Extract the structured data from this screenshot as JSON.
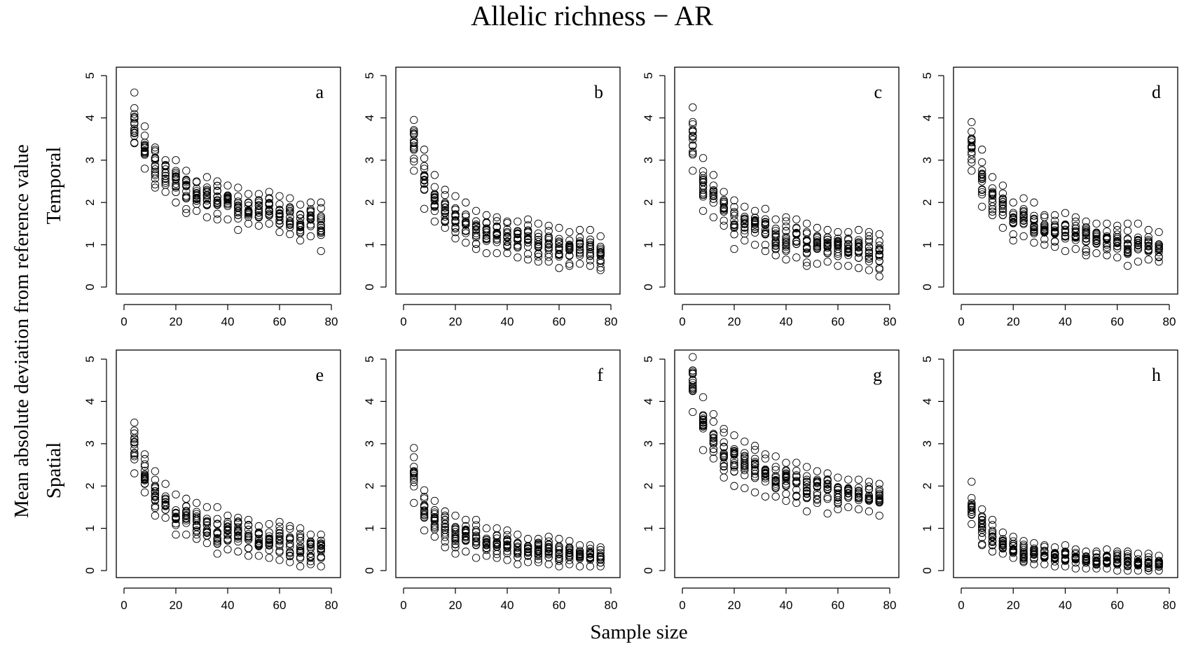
{
  "figure": {
    "title": "Allelic richness − AR",
    "xlabel": "Sample size",
    "ylabel": "Mean absolute deviation from reference value",
    "row_labels": [
      "Temporal",
      "Spatial"
    ]
  },
  "chart_data": {
    "type": "scatter",
    "title": "Allelic richness − AR",
    "xlabel": "Sample size",
    "ylabel": "Mean absolute deviation from reference value",
    "xlim": [
      0,
      80
    ],
    "ylim": [
      0,
      5
    ],
    "xticks": [
      0,
      20,
      40,
      60,
      80
    ],
    "yticks": [
      0,
      1,
      2,
      3,
      4,
      5
    ],
    "x": [
      4,
      8,
      12,
      16,
      20,
      24,
      28,
      32,
      36,
      40,
      44,
      48,
      52,
      56,
      60,
      64,
      68,
      72,
      76
    ],
    "panels": [
      {
        "label": "a",
        "row": "Temporal",
        "range_min": [
          3.4,
          2.8,
          2.35,
          2.25,
          2.0,
          1.75,
          1.8,
          1.65,
          1.6,
          1.6,
          1.35,
          1.5,
          1.45,
          1.5,
          1.3,
          1.25,
          1.1,
          1.2,
          0.85
        ],
        "range_max": [
          4.6,
          3.8,
          3.3,
          3.0,
          3.0,
          2.75,
          2.5,
          2.6,
          2.5,
          2.4,
          2.35,
          2.2,
          2.2,
          2.25,
          2.15,
          2.1,
          1.95,
          2.0,
          2.0
        ]
      },
      {
        "label": "b",
        "row": "Temporal",
        "range_min": [
          2.75,
          1.85,
          1.55,
          1.4,
          1.15,
          1.05,
          0.9,
          0.8,
          0.8,
          0.8,
          0.7,
          0.65,
          0.6,
          0.6,
          0.45,
          0.5,
          0.55,
          0.5,
          0.4
        ],
        "range_max": [
          3.95,
          3.25,
          2.65,
          2.3,
          2.15,
          2.0,
          1.8,
          1.7,
          1.65,
          1.55,
          1.55,
          1.6,
          1.5,
          1.45,
          1.4,
          1.3,
          1.35,
          1.35,
          1.2
        ]
      },
      {
        "label": "c",
        "row": "Temporal",
        "range_min": [
          2.75,
          1.8,
          1.65,
          1.45,
          0.9,
          1.1,
          1.0,
          0.85,
          0.75,
          0.65,
          0.7,
          0.5,
          0.55,
          0.6,
          0.5,
          0.5,
          0.45,
          0.4,
          0.25
        ],
        "range_max": [
          4.25,
          3.05,
          2.65,
          2.25,
          2.05,
          1.9,
          1.8,
          1.85,
          1.6,
          1.65,
          1.6,
          1.5,
          1.4,
          1.35,
          1.3,
          1.3,
          1.35,
          1.3,
          1.25
        ]
      },
      {
        "label": "d",
        "row": "Temporal",
        "range_min": [
          2.75,
          1.9,
          1.7,
          1.4,
          1.1,
          1.2,
          1.05,
          1.0,
          0.95,
          0.85,
          0.9,
          0.75,
          0.8,
          0.75,
          0.7,
          0.5,
          0.6,
          0.65,
          0.6
        ],
        "range_max": [
          3.9,
          3.25,
          2.6,
          2.4,
          2.0,
          2.1,
          2.0,
          1.7,
          1.7,
          1.75,
          1.65,
          1.55,
          1.5,
          1.5,
          1.45,
          1.5,
          1.5,
          1.35,
          1.3
        ]
      },
      {
        "label": "e",
        "row": "Spatial",
        "range_min": [
          2.3,
          1.85,
          1.3,
          1.25,
          0.85,
          0.85,
          0.75,
          0.65,
          0.4,
          0.5,
          0.45,
          0.35,
          0.35,
          0.3,
          0.25,
          0.2,
          0.1,
          0.15,
          0.1
        ],
        "range_max": [
          3.5,
          2.75,
          2.35,
          2.05,
          1.8,
          1.7,
          1.6,
          1.5,
          1.5,
          1.3,
          1.25,
          1.2,
          1.05,
          1.1,
          1.15,
          1.05,
          1.0,
          0.85,
          0.85
        ]
      },
      {
        "label": "f",
        "row": "Spatial",
        "range_min": [
          1.6,
          0.95,
          0.8,
          0.55,
          0.4,
          0.45,
          0.3,
          0.35,
          0.3,
          0.25,
          0.15,
          0.2,
          0.2,
          0.15,
          0.1,
          0.15,
          0.1,
          0.1,
          0.1
        ],
        "range_max": [
          2.9,
          1.9,
          1.65,
          1.4,
          1.3,
          1.2,
          1.2,
          1.0,
          1.0,
          0.95,
          0.85,
          0.75,
          0.75,
          0.8,
          0.75,
          0.7,
          0.6,
          0.6,
          0.55
        ]
      },
      {
        "label": "g",
        "row": "Spatial",
        "range_min": [
          3.75,
          2.85,
          2.65,
          2.2,
          2.0,
          1.95,
          1.85,
          1.75,
          1.75,
          1.65,
          1.6,
          1.4,
          1.6,
          1.35,
          1.45,
          1.5,
          1.45,
          1.4,
          1.3
        ],
        "range_max": [
          5.05,
          4.1,
          3.7,
          3.35,
          3.2,
          3.05,
          2.95,
          2.75,
          2.7,
          2.55,
          2.55,
          2.45,
          2.35,
          2.3,
          2.2,
          2.15,
          2.15,
          2.1,
          2.05
        ]
      },
      {
        "label": "h",
        "row": "Spatial",
        "range_min": [
          1.1,
          0.6,
          0.45,
          0.4,
          0.3,
          0.2,
          0.15,
          0.15,
          0.1,
          0.1,
          0.05,
          0.05,
          0.05,
          0.05,
          0.0,
          0.0,
          0.0,
          0.0,
          0.0
        ],
        "range_max": [
          2.1,
          1.45,
          1.2,
          0.9,
          0.8,
          0.7,
          0.65,
          0.6,
          0.55,
          0.6,
          0.5,
          0.45,
          0.45,
          0.5,
          0.45,
          0.45,
          0.4,
          0.4,
          0.35
        ]
      }
    ]
  }
}
